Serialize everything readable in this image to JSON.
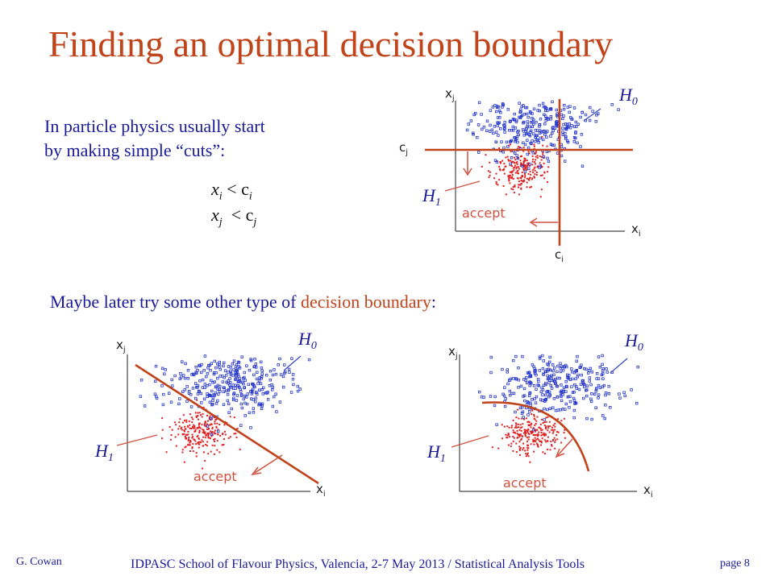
{
  "title": "Finding an optimal decision boundary",
  "intro": {
    "line1": "In particle physics usually start",
    "line2": "by making simple “cuts”:"
  },
  "cuts": [
    {
      "var": "x",
      "sub": "i",
      "op": " < ",
      "bound": "c",
      "bsub": "i"
    },
    {
      "var": "x",
      "sub": "j",
      "op": "  < ",
      "bound": "c",
      "bsub": "j"
    }
  ],
  "maybe": {
    "prefix": "Maybe later try some other type of ",
    "highlight": "decision boundary",
    "suffix": ":"
  },
  "plot_labels": {
    "x_axis": "x",
    "x_axis_sub": "i",
    "y_axis": "x",
    "y_axis_sub": "j",
    "cut_x": "c",
    "cut_x_sub": "i",
    "cut_y": "c",
    "cut_y_sub": "j",
    "h0": "H",
    "h0_sub": "0",
    "h1": "H",
    "h1_sub": "1",
    "accept": "accept"
  },
  "colors": {
    "title": "#c0431a",
    "text": "#1a1a99",
    "boundary": "#c0431a",
    "h0_points": "#2233cc",
    "h1_points": "#e02020",
    "arrow": "#d05040"
  },
  "footer": {
    "author": "G. Cowan",
    "center": "IDPASC School of Flavour Physics, Valencia, 2-7 May 2013 / Statistical Analysis Tools",
    "page": "page 8"
  }
}
